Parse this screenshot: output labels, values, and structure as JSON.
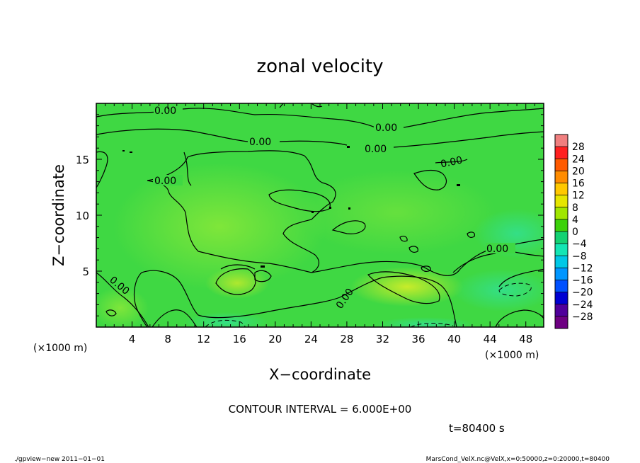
{
  "chart_data": {
    "type": "heatmap",
    "title": "zonal velocity",
    "xlabel": "X−coordinate",
    "ylabel": "Z−coordinate",
    "x_unit_left": "(×1000 m)",
    "x_unit_right": "(×1000 m)",
    "xlim": [
      0,
      50
    ],
    "ylim": [
      0,
      20
    ],
    "x_ticks": [
      4,
      8,
      12,
      16,
      20,
      24,
      28,
      32,
      36,
      40,
      44,
      48
    ],
    "y_ticks": [
      5,
      10,
      15
    ],
    "colorbar": {
      "levels": [
        "28",
        "24",
        "20",
        "16",
        "12",
        "8",
        "4",
        "0",
        "−4",
        "−8",
        "−12",
        "−16",
        "−20",
        "−24",
        "−28"
      ],
      "colors": [
        "#f07f7f",
        "#ff2020",
        "#ff5a00",
        "#ff8c00",
        "#ffc800",
        "#e6e600",
        "#a0e600",
        "#3cd20a",
        "#14d273",
        "#14e6b4",
        "#00c8e6",
        "#0096ff",
        "#0050ff",
        "#0000d2",
        "#50009b",
        "#6e0082"
      ]
    },
    "contour_labels": [
      "0.00",
      "0.00",
      "0.00",
      "0.00",
      "0.00",
      "0.00",
      "0.00",
      "0.00",
      "0.00"
    ],
    "contour_interval_text": "CONTOUR INTERVAL = 6.000E+00",
    "time_text": "t=80400 s",
    "footer_left": "./gpview−new 2011−01−01",
    "footer_right": "MarsCond_VelX.nc@VelX,x=0:50000,z=0:20000,t=80400"
  }
}
